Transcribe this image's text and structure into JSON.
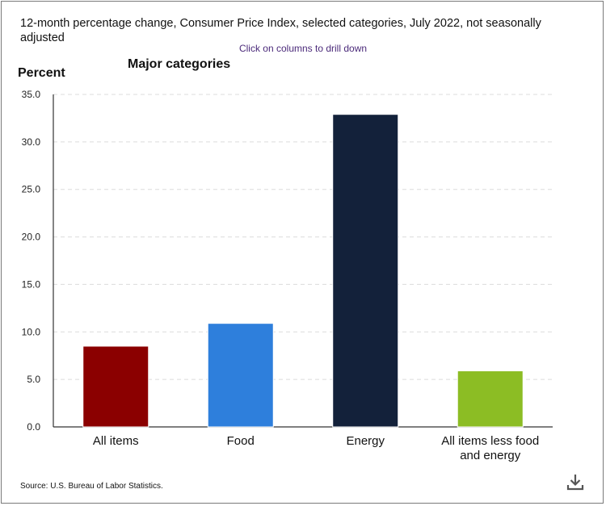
{
  "title": "12-month percentage change, Consumer Price Index, selected categories, July 2022, not seasonally adjusted",
  "drill_hint": "Click on columns to drill down",
  "source": "Source: U.S. Bureau of Labor Statistics.",
  "icons": {
    "download": "download-icon"
  },
  "chart_data": {
    "type": "bar",
    "title": "Major categories",
    "ylabel": "Percent",
    "xlabel": "",
    "ylim": [
      0,
      35
    ],
    "yticks": [
      "0.0",
      "5.0",
      "10.0",
      "15.0",
      "20.0",
      "25.0",
      "30.0",
      "35.0"
    ],
    "grid": true,
    "categories": [
      [
        "All items"
      ],
      [
        "Food"
      ],
      [
        "Energy"
      ],
      [
        "All items less food",
        "and energy"
      ]
    ],
    "values": [
      8.5,
      10.9,
      32.9,
      5.9
    ],
    "colors": [
      "#8b0000",
      "#2e7fdc",
      "#13213a",
      "#8cbd24"
    ]
  }
}
